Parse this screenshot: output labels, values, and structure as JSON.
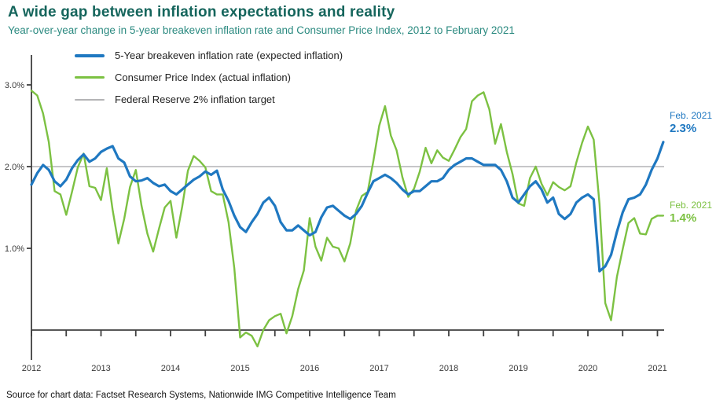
{
  "header": {
    "title": "A wide gap between inflation expectations and reality",
    "subtitle": "Year-over-year change in 5-year breakeven inflation rate and Consumer Price Index, 2012 to February 2021"
  },
  "legend": [
    {
      "label": "5-Year breakeven inflation rate (expected inflation)",
      "color": "#1f78c1"
    },
    {
      "label": "Consumer Price Index (actual inflation)",
      "color": "#7cc142"
    },
    {
      "label": "Federal Reserve 2% inflation target",
      "color": "#b4b4b6"
    }
  ],
  "annotations": [
    {
      "label": "Feb. 2021",
      "value": "2.3%",
      "color": "#1f78c1"
    },
    {
      "label": "Feb. 2021",
      "value": "1.4%",
      "color": "#7cc142"
    }
  ],
  "source": "Source for chart data: Factset Research Systems, Nationwide IMG Competitive Intelligence Team",
  "chart_data": {
    "type": "line",
    "title": "A wide gap between inflation expectations and reality",
    "x_unit": "month",
    "x_range": [
      "2012-01",
      "2021-02"
    ],
    "x_ticks": [
      "2012",
      "2013",
      "2014",
      "2015",
      "2016",
      "2017",
      "2018",
      "2019",
      "2020",
      "2021"
    ],
    "y_ticks": [
      {
        "value": 3.0,
        "label": "3.0%"
      },
      {
        "value": 2.0,
        "label": "2.0%"
      },
      {
        "value": 1.0,
        "label": "1.0%"
      }
    ],
    "ylim": [
      -0.4,
      3.35
    ],
    "grid": false,
    "legend_position": "top-left-inside",
    "reference_line": {
      "value": 2.0,
      "label": "Federal Reserve 2% inflation target",
      "color": "#b4b4b6"
    },
    "series": [
      {
        "name": "5-Year breakeven inflation rate (expected inflation)",
        "color": "#1f78c1",
        "width": 3.2,
        "values": [
          1.78,
          1.92,
          2.02,
          1.96,
          1.82,
          1.76,
          1.84,
          1.98,
          2.08,
          2.15,
          2.06,
          2.1,
          2.18,
          2.22,
          2.25,
          2.1,
          2.05,
          1.88,
          1.82,
          1.83,
          1.86,
          1.8,
          1.76,
          1.78,
          1.7,
          1.66,
          1.72,
          1.78,
          1.84,
          1.88,
          1.94,
          1.9,
          1.95,
          1.72,
          1.58,
          1.4,
          1.26,
          1.2,
          1.32,
          1.42,
          1.56,
          1.62,
          1.52,
          1.32,
          1.22,
          1.22,
          1.28,
          1.22,
          1.16,
          1.2,
          1.38,
          1.5,
          1.52,
          1.46,
          1.4,
          1.36,
          1.42,
          1.52,
          1.68,
          1.82,
          1.86,
          1.9,
          1.86,
          1.8,
          1.72,
          1.66,
          1.7,
          1.7,
          1.76,
          1.82,
          1.82,
          1.86,
          1.96,
          2.02,
          2.06,
          2.1,
          2.1,
          2.06,
          2.02,
          2.02,
          2.02,
          1.96,
          1.82,
          1.62,
          1.56,
          1.66,
          1.76,
          1.82,
          1.72,
          1.56,
          1.62,
          1.42,
          1.36,
          1.42,
          1.56,
          1.62,
          1.66,
          1.6,
          0.72,
          0.78,
          0.92,
          1.2,
          1.44,
          1.6,
          1.62,
          1.66,
          1.78,
          1.96,
          2.1,
          2.3
        ]
      },
      {
        "name": "Consumer Price Index (actual inflation)",
        "color": "#7cc142",
        "width": 2.4,
        "values": [
          2.93,
          2.87,
          2.65,
          2.3,
          1.7,
          1.66,
          1.41,
          1.69,
          1.99,
          2.16,
          1.76,
          1.74,
          1.59,
          1.98,
          1.47,
          1.06,
          1.36,
          1.75,
          1.96,
          1.52,
          1.18,
          0.96,
          1.24,
          1.5,
          1.58,
          1.13,
          1.51,
          1.95,
          2.13,
          2.07,
          1.99,
          1.7,
          1.66,
          1.66,
          1.32,
          0.76,
          -0.09,
          -0.03,
          -0.07,
          -0.2,
          0.0,
          0.12,
          0.17,
          0.2,
          -0.04,
          0.17,
          0.5,
          0.73,
          1.37,
          1.02,
          0.85,
          1.13,
          1.02,
          1.0,
          0.84,
          1.06,
          1.46,
          1.64,
          1.69,
          2.07,
          2.5,
          2.74,
          2.38,
          2.2,
          1.87,
          1.63,
          1.73,
          1.94,
          2.23,
          2.04,
          2.2,
          2.11,
          2.07,
          2.21,
          2.36,
          2.46,
          2.8,
          2.87,
          2.91,
          2.7,
          2.28,
          2.52,
          2.18,
          1.91,
          1.55,
          1.52,
          1.86,
          2.0,
          1.79,
          1.65,
          1.81,
          1.75,
          1.71,
          1.76,
          2.05,
          2.29,
          2.49,
          2.33,
          1.54,
          0.33,
          0.12,
          0.65,
          0.99,
          1.31,
          1.37,
          1.18,
          1.17,
          1.36,
          1.4,
          1.4
        ]
      }
    ],
    "end_labels": [
      {
        "series": 0,
        "label": "Feb. 2021",
        "value_label": "2.3%"
      },
      {
        "series": 1,
        "label": "Feb. 2021",
        "value_label": "1.4%"
      }
    ]
  }
}
